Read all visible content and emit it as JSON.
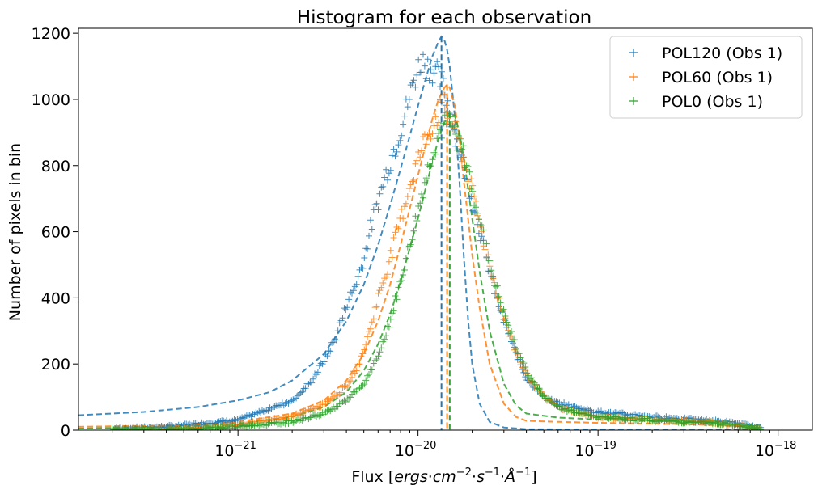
{
  "chart_data": {
    "type": "scatter",
    "title": "Histogram for each observation",
    "xlabel_parts": [
      "Flux [",
      "ergs",
      "·",
      "cm",
      "−2",
      "·",
      "s",
      "−1",
      "·",
      "Å",
      "−1",
      "]"
    ],
    "ylabel": "Number of pixels in bin",
    "xscale": "log",
    "xlim": [
      1.3e-22,
      1.55e-18
    ],
    "ylim": [
      0,
      1215
    ],
    "xticks": [
      {
        "value": 1e-21,
        "base": "10",
        "exp": "−21"
      },
      {
        "value": 1e-20,
        "base": "10",
        "exp": "−20"
      },
      {
        "value": 1e-19,
        "base": "10",
        "exp": "−19"
      },
      {
        "value": 1e-18,
        "base": "10",
        "exp": "−18"
      }
    ],
    "yticks": [
      "0",
      "200",
      "400",
      "600",
      "800",
      "1000",
      "1200"
    ],
    "legend_position": "top-right",
    "series": [
      {
        "name": "POL120 (Obs 1)",
        "color": "#1f77b4",
        "marker": "plus",
        "peak": {
          "x": 1.35e-20,
          "y": 1190
        },
        "points": [
          [
            1.3e-22,
            0
          ],
          [
            4e-22,
            10
          ],
          [
            1e-21,
            30
          ],
          [
            2e-21,
            90
          ],
          [
            2.5e-21,
            140
          ],
          [
            3e-21,
            210
          ],
          [
            3.5e-21,
            280
          ],
          [
            4e-21,
            380
          ],
          [
            4.5e-21,
            440
          ],
          [
            5e-21,
            520
          ],
          [
            5.5e-21,
            620
          ],
          [
            6.5e-21,
            760
          ],
          [
            7.5e-21,
            860
          ],
          [
            8.5e-21,
            960
          ],
          [
            9.5e-21,
            1060
          ],
          [
            1.05e-20,
            1120
          ],
          [
            1.15e-20,
            1100
          ],
          [
            1.25e-20,
            1080
          ],
          [
            1.35e-20,
            1050
          ],
          [
            1.45e-20,
            1000
          ],
          [
            1.6e-20,
            900
          ],
          [
            1.8e-20,
            800
          ],
          [
            2e-20,
            700
          ],
          [
            2.3e-20,
            560
          ],
          [
            2.6e-20,
            440
          ],
          [
            3e-20,
            330
          ],
          [
            3.5e-20,
            230
          ],
          [
            4e-20,
            160
          ],
          [
            5e-20,
            100
          ],
          [
            6e-20,
            80
          ],
          [
            8e-20,
            65
          ],
          [
            1e-19,
            55
          ],
          [
            2e-19,
            40
          ],
          [
            4e-19,
            30
          ],
          [
            6e-19,
            20
          ],
          [
            8e-19,
            5
          ]
        ]
      },
      {
        "name": "POL60 (Obs 1)",
        "color": "#ff7f0e",
        "marker": "plus",
        "peak": {
          "x": 1.45e-20,
          "y": 1045
        },
        "points": [
          [
            1.3e-22,
            0
          ],
          [
            5e-22,
            5
          ],
          [
            1e-21,
            15
          ],
          [
            2e-21,
            40
          ],
          [
            3e-21,
            80
          ],
          [
            4e-21,
            130
          ],
          [
            4.5e-21,
            180
          ],
          [
            5e-21,
            240
          ],
          [
            5.5e-21,
            320
          ],
          [
            6e-21,
            400
          ],
          [
            7e-21,
            520
          ],
          [
            8e-21,
            640
          ],
          [
            9e-21,
            740
          ],
          [
            1e-20,
            820
          ],
          [
            1.1e-20,
            880
          ],
          [
            1.2e-20,
            920
          ],
          [
            1.3e-20,
            960
          ],
          [
            1.4e-20,
            980
          ],
          [
            1.5e-20,
            950
          ],
          [
            1.65e-20,
            880
          ],
          [
            1.8e-20,
            820
          ],
          [
            2e-20,
            720
          ],
          [
            2.3e-20,
            580
          ],
          [
            2.6e-20,
            460
          ],
          [
            3e-20,
            340
          ],
          [
            3.5e-20,
            240
          ],
          [
            4e-20,
            170
          ],
          [
            5e-20,
            100
          ],
          [
            6e-20,
            70
          ],
          [
            8e-20,
            50
          ],
          [
            1e-19,
            40
          ],
          [
            2e-19,
            30
          ],
          [
            4e-19,
            25
          ],
          [
            6e-19,
            15
          ],
          [
            8e-19,
            5
          ]
        ]
      },
      {
        "name": "POL0 (Obs 1)",
        "color": "#2ca02c",
        "marker": "plus",
        "peak": {
          "x": 1.5e-20,
          "y": 960
        },
        "points": [
          [
            1.3e-22,
            0
          ],
          [
            5e-22,
            3
          ],
          [
            1e-21,
            10
          ],
          [
            2e-21,
            25
          ],
          [
            3e-21,
            50
          ],
          [
            4e-21,
            90
          ],
          [
            5e-21,
            140
          ],
          [
            6e-21,
            220
          ],
          [
            7e-21,
            330
          ],
          [
            8e-21,
            450
          ],
          [
            9e-21,
            560
          ],
          [
            1e-20,
            660
          ],
          [
            1.1e-20,
            760
          ],
          [
            1.2e-20,
            840
          ],
          [
            1.3e-20,
            890
          ],
          [
            1.4e-20,
            920
          ],
          [
            1.5e-20,
            930
          ],
          [
            1.6e-20,
            900
          ],
          [
            1.75e-20,
            850
          ],
          [
            1.9e-20,
            780
          ],
          [
            2.1e-20,
            690
          ],
          [
            2.3e-20,
            590
          ],
          [
            2.6e-20,
            470
          ],
          [
            3e-20,
            350
          ],
          [
            3.5e-20,
            250
          ],
          [
            4e-20,
            180
          ],
          [
            5e-20,
            100
          ],
          [
            6e-20,
            70
          ],
          [
            8e-20,
            50
          ],
          [
            1e-19,
            40
          ],
          [
            2e-19,
            30
          ],
          [
            4e-19,
            22
          ],
          [
            6e-19,
            15
          ],
          [
            8e-19,
            5
          ]
        ]
      }
    ],
    "fits": [
      {
        "color": "#1f77b4",
        "points": [
          [
            1.3e-22,
            45
          ],
          [
            3e-22,
            55
          ],
          [
            6e-22,
            70
          ],
          [
            1e-21,
            90
          ],
          [
            1.5e-21,
            115
          ],
          [
            2e-21,
            150
          ],
          [
            3e-21,
            230
          ],
          [
            4e-21,
            330
          ],
          [
            5e-21,
            440
          ],
          [
            6e-21,
            560
          ],
          [
            7e-21,
            680
          ],
          [
            8e-21,
            790
          ],
          [
            9e-21,
            890
          ],
          [
            1e-20,
            980
          ],
          [
            1.1e-20,
            1060
          ],
          [
            1.2e-20,
            1130
          ],
          [
            1.3e-20,
            1175
          ],
          [
            1.35e-20,
            1190
          ],
          [
            1.4e-20,
            1180
          ],
          [
            1.45e-20,
            1150
          ],
          [
            1.5e-20,
            1100
          ],
          [
            1.6e-20,
            950
          ],
          [
            1.7e-20,
            750
          ],
          [
            1.8e-20,
            520
          ],
          [
            1.9e-20,
            330
          ],
          [
            2e-20,
            200
          ],
          [
            2.2e-20,
            80
          ],
          [
            2.5e-20,
            25
          ],
          [
            3e-20,
            8
          ],
          [
            4e-20,
            3
          ],
          [
            8e-19,
            0
          ]
        ]
      },
      {
        "color": "#ff7f0e",
        "points": [
          [
            1.3e-22,
            10
          ],
          [
            5e-22,
            15
          ],
          [
            1e-21,
            25
          ],
          [
            2e-21,
            50
          ],
          [
            3e-21,
            90
          ],
          [
            4e-21,
            150
          ],
          [
            5e-21,
            230
          ],
          [
            6e-21,
            330
          ],
          [
            7e-21,
            440
          ],
          [
            8e-21,
            560
          ],
          [
            9e-21,
            670
          ],
          [
            1e-20,
            770
          ],
          [
            1.1e-20,
            860
          ],
          [
            1.2e-20,
            940
          ],
          [
            1.3e-20,
            1000
          ],
          [
            1.4e-20,
            1035
          ],
          [
            1.45e-20,
            1045
          ],
          [
            1.5e-20,
            1035
          ],
          [
            1.6e-20,
            980
          ],
          [
            1.7e-20,
            880
          ],
          [
            1.8e-20,
            750
          ],
          [
            2e-20,
            530
          ],
          [
            2.2e-20,
            370
          ],
          [
            2.5e-20,
            200
          ],
          [
            3e-20,
            80
          ],
          [
            3.5e-20,
            40
          ],
          [
            4e-20,
            28
          ],
          [
            6e-20,
            25
          ],
          [
            1e-19,
            22
          ],
          [
            3e-19,
            18
          ],
          [
            8e-19,
            10
          ]
        ]
      },
      {
        "color": "#2ca02c",
        "points": [
          [
            1.3e-22,
            5
          ],
          [
            5e-22,
            10
          ],
          [
            1e-21,
            20
          ],
          [
            2e-21,
            40
          ],
          [
            3e-21,
            70
          ],
          [
            4e-21,
            115
          ],
          [
            5e-21,
            180
          ],
          [
            6e-21,
            260
          ],
          [
            7e-21,
            350
          ],
          [
            8e-21,
            450
          ],
          [
            9e-21,
            550
          ],
          [
            1e-20,
            640
          ],
          [
            1.1e-20,
            730
          ],
          [
            1.2e-20,
            810
          ],
          [
            1.3e-20,
            880
          ],
          [
            1.4e-20,
            930
          ],
          [
            1.5e-20,
            960
          ],
          [
            1.6e-20,
            950
          ],
          [
            1.7e-20,
            900
          ],
          [
            1.8e-20,
            820
          ],
          [
            2e-20,
            640
          ],
          [
            2.2e-20,
            480
          ],
          [
            2.5e-20,
            300
          ],
          [
            3e-20,
            140
          ],
          [
            3.5e-20,
            75
          ],
          [
            4e-20,
            50
          ],
          [
            6e-20,
            38
          ],
          [
            1e-19,
            32
          ],
          [
            3e-19,
            25
          ],
          [
            8e-19,
            15
          ]
        ]
      }
    ]
  }
}
